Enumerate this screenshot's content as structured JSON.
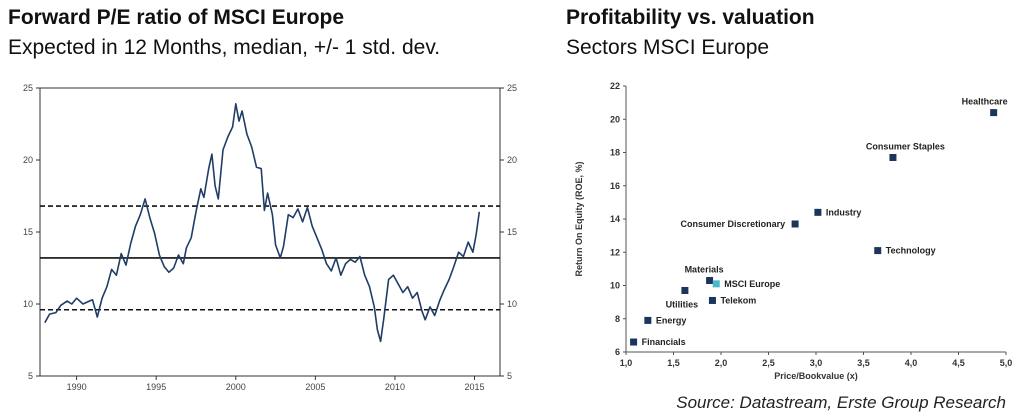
{
  "left": {
    "title": "Forward P/E ratio of MSCI Europe",
    "subtitle": "Expected in 12 Months, median, +/- 1 std. dev."
  },
  "right": {
    "title": "Profitability vs. valuation",
    "subtitle": "Sectors MSCI Europe"
  },
  "source": "Source: Datastream, Erste Group Research",
  "chart_data": [
    {
      "type": "line",
      "title": "Forward P/E ratio of MSCI Europe",
      "subtitle": "Expected in 12 Months, median, +/- 1 std. dev.",
      "xlim": [
        1987.7,
        2016.6
      ],
      "ylim": [
        5,
        25
      ],
      "x_ticks": [
        "1990",
        "1995",
        "2000",
        "2005",
        "2010",
        "2015"
      ],
      "y_ticks": [
        "5",
        "10",
        "15",
        "20",
        "25"
      ],
      "reference_lines": [
        {
          "label": "median",
          "value": 13.2,
          "style": "solid"
        },
        {
          "label": "+1 std. dev.",
          "value": 16.8,
          "style": "dashed"
        },
        {
          "label": "-1 std. dev.",
          "value": 9.6,
          "style": "dashed"
        }
      ],
      "series": [
        {
          "color": "#1f3d66",
          "points": [
            [
              1988.0,
              8.7
            ],
            [
              1988.3,
              9.3
            ],
            [
              1988.7,
              9.4
            ],
            [
              1989.0,
              9.9
            ],
            [
              1989.4,
              10.2
            ],
            [
              1989.7,
              10.0
            ],
            [
              1990.0,
              10.4
            ],
            [
              1990.4,
              10.0
            ],
            [
              1990.8,
              10.2
            ],
            [
              1991.0,
              10.3
            ],
            [
              1991.3,
              9.1
            ],
            [
              1991.6,
              10.4
            ],
            [
              1991.9,
              11.2
            ],
            [
              1992.2,
              12.4
            ],
            [
              1992.5,
              12.0
            ],
            [
              1992.8,
              13.5
            ],
            [
              1993.1,
              12.7
            ],
            [
              1993.4,
              14.2
            ],
            [
              1993.7,
              15.4
            ],
            [
              1994.0,
              16.2
            ],
            [
              1994.3,
              17.3
            ],
            [
              1994.6,
              16.0
            ],
            [
              1994.9,
              14.9
            ],
            [
              1995.2,
              13.4
            ],
            [
              1995.5,
              12.6
            ],
            [
              1995.8,
              12.2
            ],
            [
              1996.1,
              12.5
            ],
            [
              1996.4,
              13.4
            ],
            [
              1996.7,
              12.8
            ],
            [
              1996.9,
              13.9
            ],
            [
              1997.2,
              14.6
            ],
            [
              1997.5,
              16.4
            ],
            [
              1997.8,
              18.0
            ],
            [
              1998.0,
              17.4
            ],
            [
              1998.3,
              19.4
            ],
            [
              1998.5,
              20.4
            ],
            [
              1998.7,
              18.2
            ],
            [
              1998.9,
              17.3
            ],
            [
              1999.2,
              20.7
            ],
            [
              1999.5,
              21.6
            ],
            [
              1999.8,
              22.3
            ],
            [
              2000.0,
              23.9
            ],
            [
              2000.2,
              22.7
            ],
            [
              2000.4,
              23.4
            ],
            [
              2000.7,
              21.8
            ],
            [
              2001.0,
              20.9
            ],
            [
              2001.3,
              19.5
            ],
            [
              2001.6,
              19.4
            ],
            [
              2001.8,
              16.5
            ],
            [
              2002.0,
              17.7
            ],
            [
              2002.3,
              16.2
            ],
            [
              2002.5,
              14.1
            ],
            [
              2002.8,
              13.2
            ],
            [
              2003.0,
              14.0
            ],
            [
              2003.3,
              16.2
            ],
            [
              2003.6,
              16.0
            ],
            [
              2003.9,
              16.6
            ],
            [
              2004.2,
              15.7
            ],
            [
              2004.5,
              16.7
            ],
            [
              2004.8,
              15.4
            ],
            [
              2005.1,
              14.6
            ],
            [
              2005.4,
              13.8
            ],
            [
              2005.7,
              12.8
            ],
            [
              2006.0,
              12.3
            ],
            [
              2006.3,
              13.2
            ],
            [
              2006.6,
              12.0
            ],
            [
              2006.9,
              12.8
            ],
            [
              2007.2,
              13.1
            ],
            [
              2007.5,
              12.9
            ],
            [
              2007.8,
              13.3
            ],
            [
              2008.1,
              12.0
            ],
            [
              2008.4,
              11.2
            ],
            [
              2008.7,
              9.8
            ],
            [
              2008.9,
              8.2
            ],
            [
              2009.1,
              7.4
            ],
            [
              2009.3,
              9.0
            ],
            [
              2009.6,
              11.7
            ],
            [
              2009.9,
              12.0
            ],
            [
              2010.2,
              11.4
            ],
            [
              2010.5,
              10.8
            ],
            [
              2010.8,
              11.2
            ],
            [
              2011.1,
              10.4
            ],
            [
              2011.4,
              10.8
            ],
            [
              2011.7,
              9.5
            ],
            [
              2011.9,
              8.9
            ],
            [
              2012.2,
              9.8
            ],
            [
              2012.5,
              9.2
            ],
            [
              2012.8,
              10.2
            ],
            [
              2013.1,
              11.0
            ],
            [
              2013.4,
              11.7
            ],
            [
              2013.7,
              12.6
            ],
            [
              2014.0,
              13.6
            ],
            [
              2014.3,
              13.3
            ],
            [
              2014.6,
              14.3
            ],
            [
              2014.9,
              13.6
            ],
            [
              2015.1,
              14.8
            ],
            [
              2015.3,
              16.4
            ]
          ]
        }
      ]
    },
    {
      "type": "scatter",
      "title": "Profitability vs. valuation",
      "subtitle": "Sectors MSCI Europe",
      "xlabel": "Price/Bookvalue (x)",
      "ylabel": "Return On Equity (ROE, %)",
      "xlim": [
        1.0,
        5.0
      ],
      "ylim": [
        6,
        22
      ],
      "x_ticks": [
        "1,0",
        "1,5",
        "2,0",
        "2,5",
        "3,0",
        "3,5",
        "4,0",
        "4,5",
        "5,0"
      ],
      "y_ticks": [
        "6",
        "8",
        "10",
        "12",
        "14",
        "16",
        "18",
        "20",
        "22"
      ],
      "points": [
        {
          "label": "Healthcare",
          "x": 4.87,
          "y": 20.4,
          "color": "#1b365d",
          "label_pos": "above-left"
        },
        {
          "label": "Consumer Staples",
          "x": 3.81,
          "y": 17.7,
          "color": "#1b365d",
          "label_pos": "above-left"
        },
        {
          "label": "Industry",
          "x": 3.02,
          "y": 14.4,
          "color": "#1b365d",
          "label_pos": "right"
        },
        {
          "label": "Consumer Discretionary",
          "x": 2.78,
          "y": 13.7,
          "color": "#1b365d",
          "label_pos": "left"
        },
        {
          "label": "Technology",
          "x": 3.65,
          "y": 12.1,
          "color": "#1b365d",
          "label_pos": "right"
        },
        {
          "label": "Materials",
          "x": 1.88,
          "y": 10.3,
          "color": "#1b365d",
          "label_pos": "above-left"
        },
        {
          "label": "MSCI Europe",
          "x": 1.95,
          "y": 10.1,
          "color": "#4bb8c9",
          "label_pos": "right"
        },
        {
          "label": "Utilities",
          "x": 1.62,
          "y": 9.7,
          "color": "#1b365d",
          "label_pos": "below"
        },
        {
          "label": "Telekom",
          "x": 1.91,
          "y": 9.1,
          "color": "#1b365d",
          "label_pos": "right"
        },
        {
          "label": "Energy",
          "x": 1.23,
          "y": 7.9,
          "color": "#1b365d",
          "label_pos": "right"
        },
        {
          "label": "Financials",
          "x": 1.08,
          "y": 6.6,
          "color": "#1b365d",
          "label_pos": "right"
        }
      ]
    }
  ]
}
